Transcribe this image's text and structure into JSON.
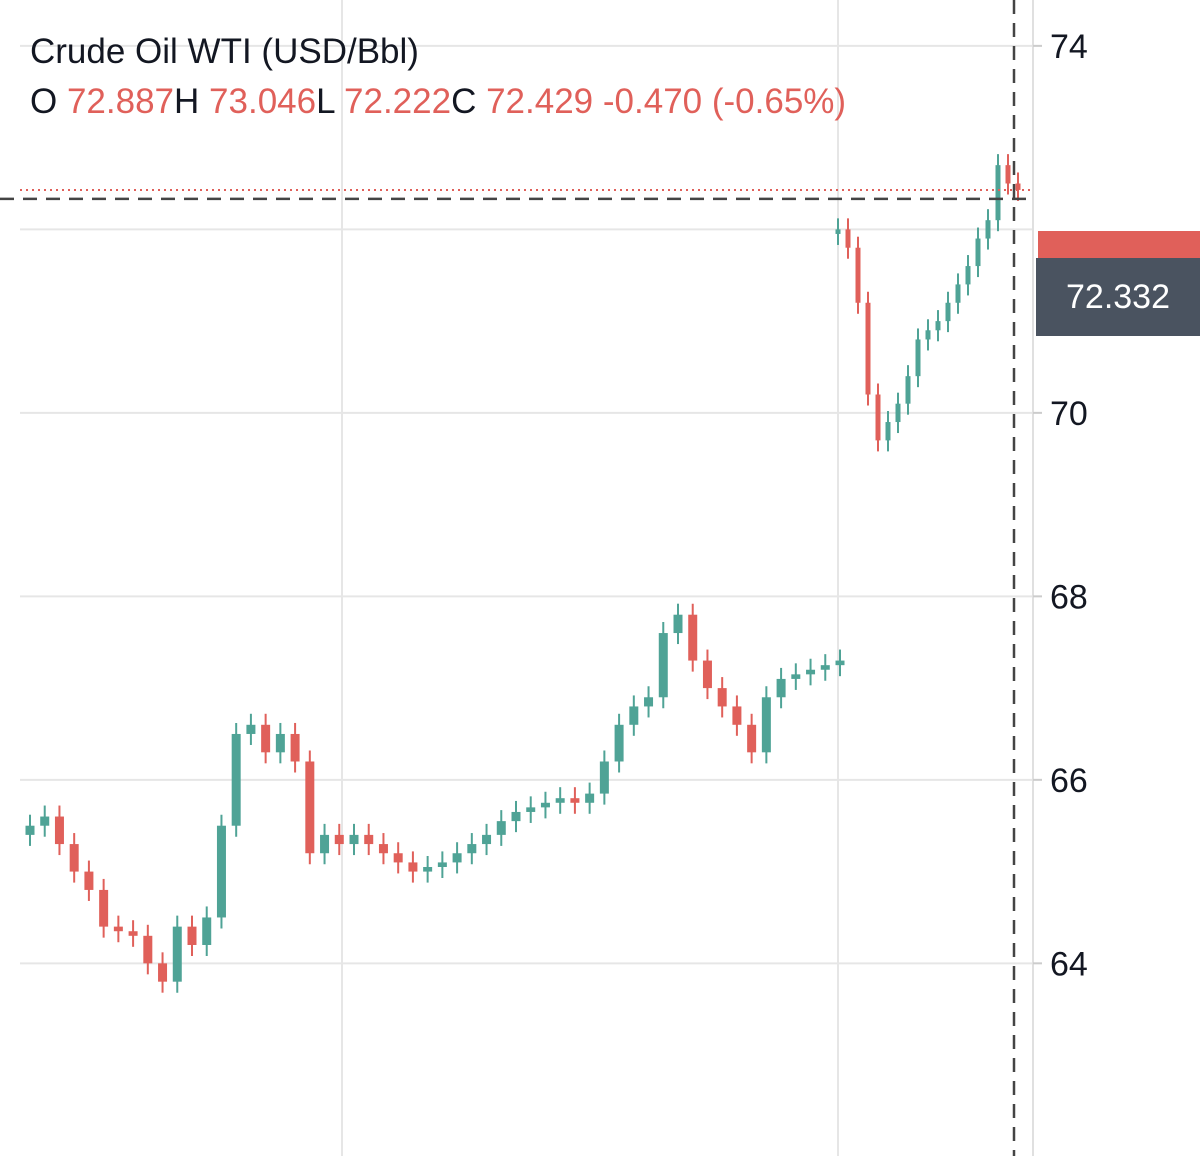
{
  "legend": {
    "title": "Crude Oil WTI (USD/Bbl)",
    "o_label": "O",
    "o_value": "72.887",
    "h_label": "H",
    "h_value": "73.046",
    "l_label": "L",
    "l_value": "72.222",
    "c_label": "C",
    "c_value": "72.429",
    "change": "-0.470",
    "change_pct": "(-0.65%)"
  },
  "crosshair": {
    "price_label": "72.332"
  },
  "colors": {
    "up": "#4fa396",
    "down": "#e0605a",
    "grid": "#e6e6e6",
    "crosshair": "#444444",
    "price_tag": "#4a5360"
  },
  "chart_data": {
    "type": "candlestick",
    "title": "Crude Oil WTI (USD/Bbl)",
    "ylim": [
      61.9,
      74.5
    ],
    "yticks": [
      "64",
      "66",
      "68",
      "70",
      "74"
    ],
    "grid": true,
    "last_price": 72.429,
    "crosshair_price": 72.332,
    "series": [
      {
        "name": "Crude Oil WTI (USD/Bbl)",
        "close": [
          65.5,
          65.6,
          65.3,
          65.0,
          64.8,
          64.4,
          64.35,
          64.3,
          64.0,
          63.8,
          64.4,
          64.2,
          64.5,
          65.5,
          66.5,
          66.6,
          66.3,
          66.5,
          66.2,
          65.2,
          65.4,
          65.3,
          65.4,
          65.3,
          65.2,
          65.1,
          65.0,
          65.05,
          65.1,
          65.2,
          65.3,
          65.4,
          65.55,
          65.65,
          65.7,
          65.75,
          65.8,
          65.75,
          65.85,
          66.2,
          66.6,
          66.8,
          66.9,
          67.6,
          67.8,
          67.3,
          67.0,
          66.8,
          66.6,
          66.3,
          66.9,
          67.1,
          67.15,
          67.2,
          67.25,
          67.3,
          72.0,
          71.8,
          71.2,
          70.2,
          69.7,
          69.9,
          70.1,
          70.4,
          70.8,
          70.9,
          71.0,
          71.2,
          71.4,
          71.6,
          71.9,
          72.1,
          72.7,
          72.5,
          72.43
        ]
      }
    ]
  }
}
